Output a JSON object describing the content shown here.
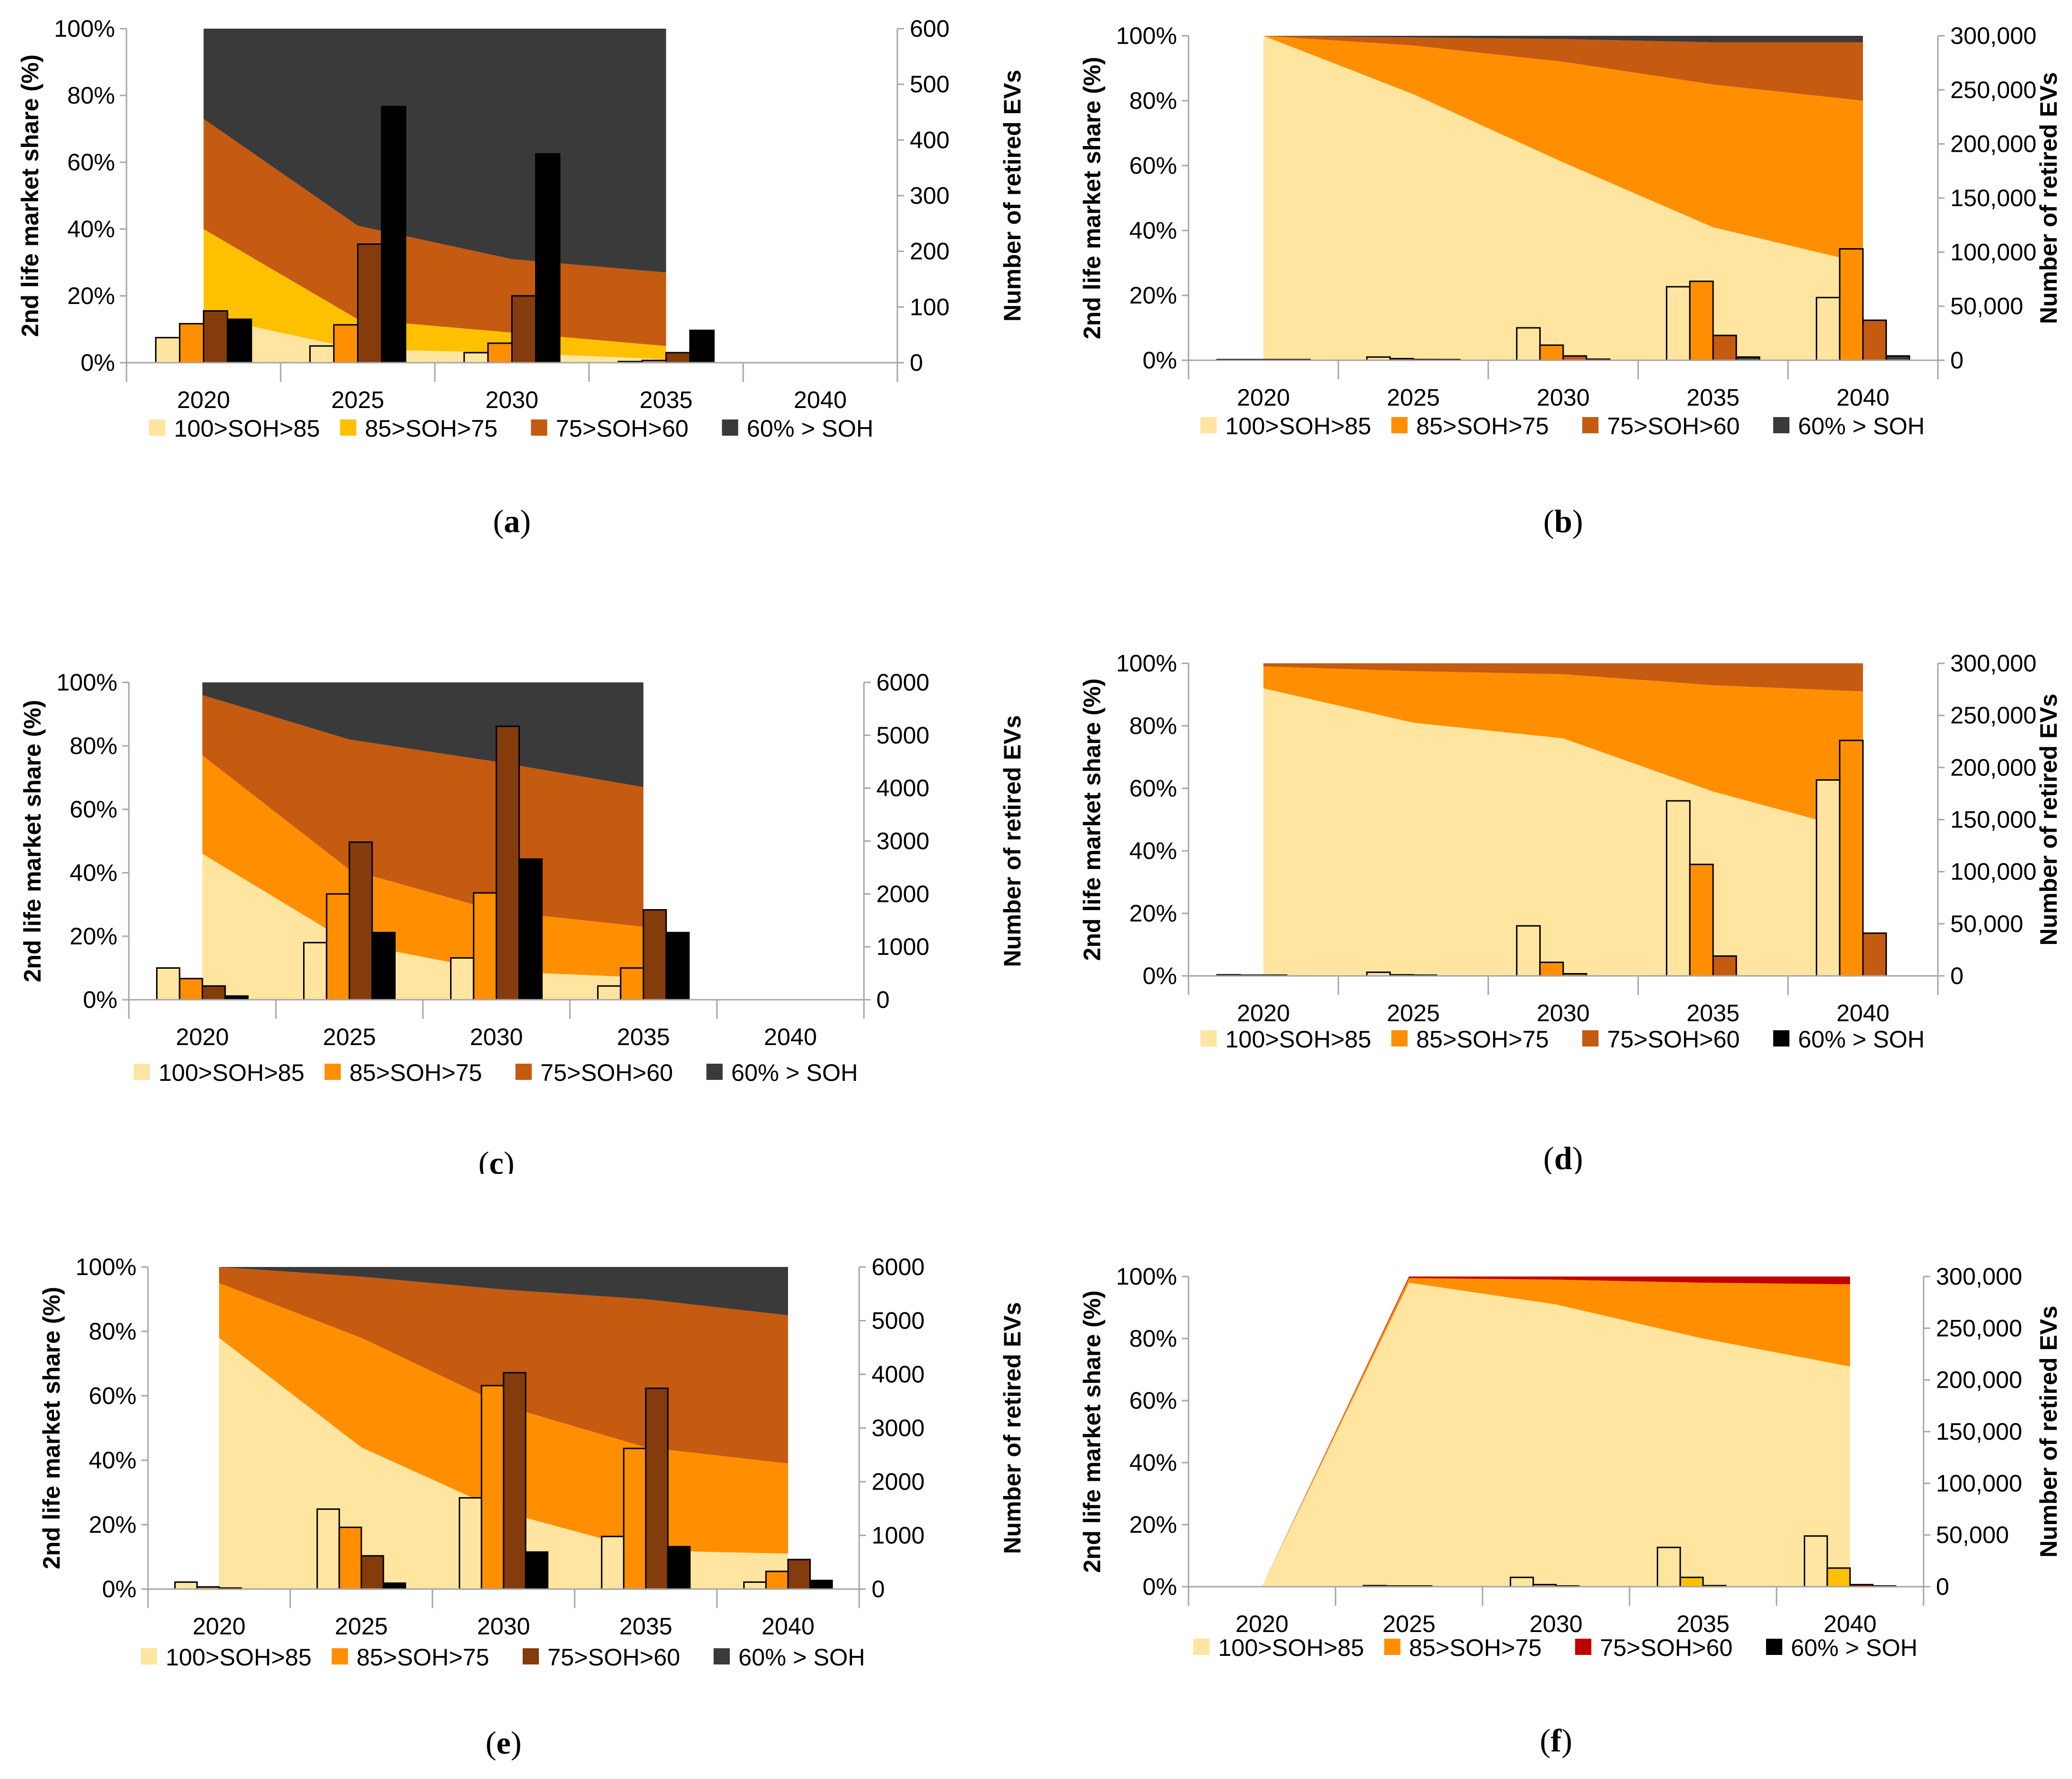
{
  "figure": {
    "legend_items": [
      "100>SOH>85",
      "85>SOH>75",
      "75>SOH>60",
      "60% > SOH"
    ],
    "colors": {
      "light": "#FFE59F",
      "yellow": "#FFC000",
      "orange": "#FF8F00",
      "rust": "#C55A11",
      "brown": "#843C0C",
      "dark": "#3A3A3A",
      "black": "#000000",
      "red": "#C00000"
    }
  },
  "chart_data": [
    {
      "panel": "a",
      "type": "area+bar",
      "ylabel": "2nd life market share (%)",
      "y2label": "Number of retired EVs",
      "categories": [
        "2020",
        "2025",
        "2030",
        "2035",
        "2040"
      ],
      "ylim": [
        0,
        100
      ],
      "yticks": [
        "0%",
        "20%",
        "40%",
        "60%",
        "80%",
        "100%"
      ],
      "y2lim": [
        0,
        600
      ],
      "y2ticks": [
        "0",
        "100",
        "200",
        "300",
        "400",
        "500",
        "600"
      ],
      "area_x": [
        "2020",
        "2025",
        "2030",
        "2035"
      ],
      "area_series": [
        {
          "name": "100>SOH>85",
          "color": "light",
          "values": [
            14,
            4,
            3,
            1
          ]
        },
        {
          "name": "85>SOH>75",
          "color": "yellow",
          "values": [
            26,
            9,
            6,
            4
          ]
        },
        {
          "name": "75>SOH>60",
          "color": "rust",
          "values": [
            33,
            28,
            22,
            22
          ]
        },
        {
          "name": "60% > SOH",
          "color": "dark",
          "values": [
            27,
            59,
            69,
            73
          ]
        }
      ],
      "bar_series": [
        {
          "name": "100>SOH>85",
          "color": "light",
          "values": [
            45,
            30,
            18,
            2
          ]
        },
        {
          "name": "85>SOH>75",
          "color": "orange",
          "values": [
            70,
            68,
            35,
            4
          ]
        },
        {
          "name": "75>SOH>60",
          "color": "brown",
          "values": [
            93,
            213,
            120,
            18
          ]
        },
        {
          "name": "60% > SOH",
          "color": "black",
          "values": [
            78,
            460,
            375,
            58
          ]
        }
      ],
      "legend_colors": [
        "light",
        "yellow",
        "rust",
        "dark"
      ],
      "label_prefix": "(",
      "label_letter": "a",
      "label_suffix": ")"
    },
    {
      "panel": "b",
      "type": "area+bar",
      "ylabel": "2nd life market share (%)",
      "y2label": "Number of retired EVs",
      "categories": [
        "2020",
        "2025",
        "2030",
        "2035",
        "2040"
      ],
      "ylim": [
        0,
        100
      ],
      "yticks": [
        "0%",
        "20%",
        "40%",
        "60%",
        "80%",
        "100%"
      ],
      "y2lim": [
        0,
        300000
      ],
      "y2ticks": [
        "0",
        "50,000",
        "100,000",
        "150,000",
        "200,000",
        "250,000",
        "300,000"
      ],
      "area_x": [
        "2020",
        "2025",
        "2030",
        "2035",
        "2040"
      ],
      "area_series": [
        {
          "name": "100>SOH>85",
          "color": "light",
          "values": [
            100,
            82,
            61,
            41,
            30
          ]
        },
        {
          "name": "85>SOH>75",
          "color": "orange",
          "values": [
            0,
            15,
            31,
            44,
            50
          ]
        },
        {
          "name": "75>SOH>60",
          "color": "rust",
          "values": [
            0,
            2.5,
            7,
            13,
            18
          ]
        },
        {
          "name": "60% > SOH",
          "color": "dark",
          "values": [
            0,
            0.5,
            1,
            2,
            2
          ]
        }
      ],
      "bar_series": [
        {
          "name": "100>SOH>85",
          "color": "light",
          "values": [
            500,
            3000,
            30000,
            68000,
            58000
          ]
        },
        {
          "name": "85>SOH>75",
          "color": "orange",
          "values": [
            200,
            1500,
            14000,
            73000,
            103000
          ]
        },
        {
          "name": "75>SOH>60",
          "color": "rust",
          "values": [
            100,
            700,
            4000,
            23000,
            37000
          ]
        },
        {
          "name": "60% > SOH",
          "color": "dark",
          "values": [
            50,
            200,
            1000,
            3000,
            4000
          ]
        }
      ],
      "legend_colors": [
        "light",
        "orange",
        "rust",
        "dark"
      ],
      "label_prefix": "(",
      "label_letter": "b",
      "label_suffix": ")"
    },
    {
      "panel": "c",
      "type": "area+bar",
      "ylabel": "2nd life market share (%)",
      "y2label": "Number of retired EVs",
      "categories": [
        "2020",
        "2025",
        "2030",
        "2035",
        "2040"
      ],
      "ylim": [
        0,
        100
      ],
      "yticks": [
        "0%",
        "20%",
        "40%",
        "60%",
        "80%",
        "100%"
      ],
      "y2lim": [
        0,
        6000
      ],
      "y2ticks": [
        "0",
        "1000",
        "2000",
        "3000",
        "4000",
        "5000",
        "6000"
      ],
      "area_x": [
        "2020",
        "2025",
        "2030",
        "2035"
      ],
      "area_series": [
        {
          "name": "100>SOH>85",
          "color": "light",
          "values": [
            46,
            18,
            9,
            7
          ]
        },
        {
          "name": "85>SOH>75",
          "color": "orange",
          "values": [
            31,
            23,
            19,
            16
          ]
        },
        {
          "name": "75>SOH>60",
          "color": "rust",
          "values": [
            19,
            41,
            47,
            44
          ]
        },
        {
          "name": "60% > SOH",
          "color": "dark",
          "values": [
            4,
            18,
            25,
            33
          ]
        }
      ],
      "bar_series": [
        {
          "name": "100>SOH>85",
          "color": "light",
          "values": [
            600,
            1080,
            790,
            260
          ]
        },
        {
          "name": "85>SOH>75",
          "color": "orange",
          "values": [
            400,
            2000,
            2020,
            600
          ]
        },
        {
          "name": "75>SOH>60",
          "color": "brown",
          "values": [
            260,
            2980,
            5170,
            1700
          ]
        },
        {
          "name": "60% > SOH",
          "color": "black",
          "values": [
            70,
            1270,
            2660,
            1270
          ]
        }
      ],
      "legend_colors": [
        "light",
        "orange",
        "rust",
        "dark"
      ],
      "label_prefix": "(",
      "label_letter": "c",
      "label_suffix": ")"
    },
    {
      "panel": "d",
      "type": "area+bar",
      "ylabel": "2nd life market share (%)",
      "y2label": "Number of retired EVs",
      "categories": [
        "2020",
        "2025",
        "2030",
        "2035",
        "2040"
      ],
      "ylim": [
        0,
        100
      ],
      "yticks": [
        "0%",
        "20%",
        "40%",
        "60%",
        "80%",
        "100%"
      ],
      "y2lim": [
        0,
        300000
      ],
      "y2ticks": [
        "0",
        "50,000",
        "100,000",
        "150,000",
        "200,000",
        "250,000",
        "300,000"
      ],
      "area_x": [
        "2020",
        "2025",
        "2030",
        "2035",
        "2040"
      ],
      "area_series": [
        {
          "name": "100>SOH>85",
          "color": "light",
          "values": [
            92,
            81,
            76,
            59,
            46
          ]
        },
        {
          "name": "85>SOH>75",
          "color": "orange",
          "values": [
            7,
            16.5,
            20.5,
            34,
            45
          ]
        },
        {
          "name": "75>SOH>60",
          "color": "rust",
          "values": [
            1,
            2.5,
            3.5,
            7,
            9
          ]
        },
        {
          "name": "60% > SOH",
          "color": "black",
          "values": [
            0,
            0,
            0,
            0,
            0
          ]
        }
      ],
      "bar_series": [
        {
          "name": "100>SOH>85",
          "color": "light",
          "values": [
            1000,
            3500,
            48000,
            168000,
            188000
          ]
        },
        {
          "name": "85>SOH>75",
          "color": "orange",
          "values": [
            300,
            1000,
            13000,
            107000,
            226000
          ]
        },
        {
          "name": "75>SOH>60",
          "color": "rust",
          "values": [
            100,
            300,
            2000,
            19000,
            41000
          ]
        },
        {
          "name": "60% > SOH",
          "color": "black",
          "values": [
            0,
            0,
            0,
            0,
            0
          ]
        }
      ],
      "legend_colors": [
        "light",
        "orange",
        "rust",
        "black"
      ],
      "label_prefix": "(",
      "label_letter": "d",
      "label_suffix": ")"
    },
    {
      "panel": "e",
      "type": "area+bar",
      "ylabel": "2nd life market share (%)",
      "y2label": "Number of retired EVs",
      "categories": [
        "2020",
        "2025",
        "2030",
        "2035",
        "2040"
      ],
      "ylim": [
        0,
        100
      ],
      "yticks": [
        "0%",
        "20%",
        "40%",
        "60%",
        "80%",
        "100%"
      ],
      "y2lim": [
        0,
        6000
      ],
      "y2ticks": [
        "0",
        "1000",
        "2000",
        "3000",
        "4000",
        "5000",
        "6000"
      ],
      "area_x": [
        "2020",
        "2025",
        "2030",
        "2035",
        "2040"
      ],
      "area_series": [
        {
          "name": "100>SOH>85",
          "color": "light",
          "values": [
            78,
            44,
            24,
            12,
            11
          ]
        },
        {
          "name": "85>SOH>75",
          "color": "orange",
          "values": [
            17,
            34,
            33,
            32,
            28
          ]
        },
        {
          "name": "75>SOH>60",
          "color": "rust",
          "values": [
            5,
            19,
            36,
            46,
            46
          ]
        },
        {
          "name": "60% > SOH",
          "color": "dark",
          "values": [
            0,
            3,
            7,
            10,
            15
          ]
        }
      ],
      "bar_series": [
        {
          "name": "100>SOH>85",
          "color": "light",
          "values": [
            130,
            1490,
            1700,
            980,
            130
          ]
        },
        {
          "name": "85>SOH>75",
          "color": "orange",
          "values": [
            40,
            1150,
            3790,
            2620,
            330
          ]
        },
        {
          "name": "75>SOH>60",
          "color": "brown",
          "values": [
            20,
            620,
            4030,
            3740,
            550
          ]
        },
        {
          "name": "60% > SOH",
          "color": "black",
          "values": [
            0,
            110,
            690,
            790,
            160
          ]
        }
      ],
      "legend_colors": [
        "light",
        "orange",
        "brown",
        "dark"
      ],
      "label_prefix": "(",
      "label_letter": "e",
      "label_suffix": ")"
    },
    {
      "panel": "f",
      "type": "area+bar",
      "ylabel": "2nd life market share (%)",
      "y2label": "Number of retired EVs",
      "categories": [
        "2020",
        "2025",
        "2030",
        "2035",
        "2040"
      ],
      "ylim": [
        0,
        100
      ],
      "yticks": [
        "0%",
        "20%",
        "40%",
        "60%",
        "80%",
        "100%"
      ],
      "y2lim": [
        0,
        300000
      ],
      "y2ticks": [
        "0",
        "50,000",
        "100,000",
        "150,000",
        "200,000",
        "250,000",
        "300,000"
      ],
      "area_x": [
        "2020",
        "2025",
        "2030",
        "2035",
        "2040"
      ],
      "area_series": [
        {
          "name": "100>SOH>85",
          "color": "light",
          "values": [
            0,
            98,
            91,
            80,
            71
          ]
        },
        {
          "name": "85>SOH>75",
          "color": "orange",
          "values": [
            0,
            1.5,
            8,
            18,
            26.5
          ]
        },
        {
          "name": "75>SOH>60",
          "color": "red",
          "values": [
            0,
            0.5,
            1,
            2,
            2.5
          ]
        },
        {
          "name": "60% > SOH",
          "color": "black",
          "values": [
            0,
            0,
            0,
            0,
            0
          ]
        }
      ],
      "bar_series": [
        {
          "name": "100>SOH>85",
          "color": "light",
          "values": [
            0,
            1000,
            9000,
            38000,
            49000
          ]
        },
        {
          "name": "85>SOH>75",
          "color": "yellow",
          "values": [
            0,
            200,
            2000,
            9000,
            18000
          ]
        },
        {
          "name": "75>SOH>60",
          "color": "red",
          "values": [
            0,
            50,
            300,
            1000,
            2000
          ]
        },
        {
          "name": "60% > SOH",
          "color": "black",
          "values": [
            0,
            0,
            0,
            0,
            500
          ]
        }
      ],
      "legend_colors": [
        "light",
        "orange",
        "red",
        "black"
      ],
      "label_prefix": "(",
      "label_letter": "f",
      "label_suffix": ")"
    }
  ]
}
